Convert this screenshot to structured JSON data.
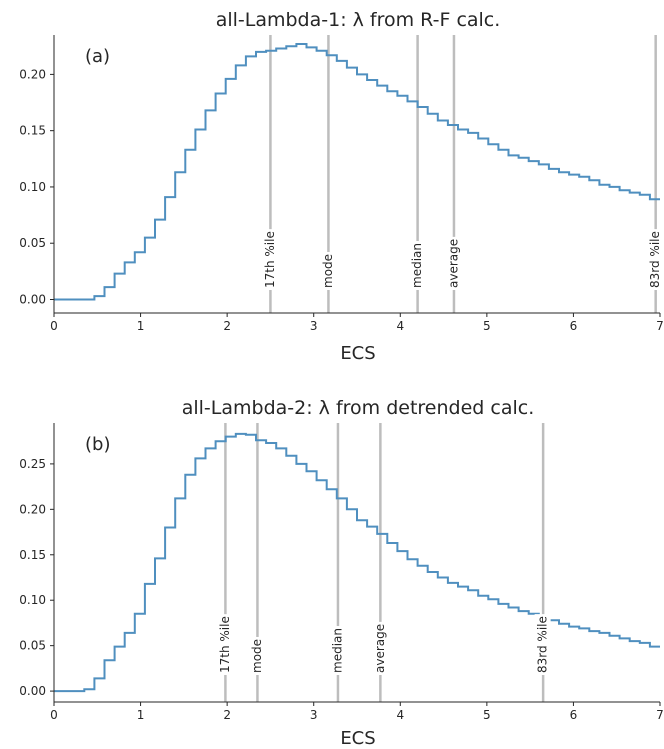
{
  "chart_data": [
    {
      "type": "line",
      "title": "all-Lambda-1: λ from R-F calc.",
      "panel_label": "(a)",
      "xlabel": "ECS",
      "ylabel": "",
      "xlim": [
        0,
        7
      ],
      "ylim": [
        -0.012,
        0.235
      ],
      "xticks": [
        0,
        1,
        2,
        3,
        4,
        5,
        6,
        7
      ],
      "yticks": [
        0.0,
        0.05,
        0.1,
        0.15,
        0.2
      ],
      "ytick_labels": [
        "0.00",
        "0.05",
        "0.10",
        "0.15",
        "0.20"
      ],
      "grid": false,
      "step_edges": [
        0,
        0.117,
        0.233,
        0.35,
        0.467,
        0.583,
        0.7,
        0.817,
        0.933,
        1.05,
        1.167,
        1.283,
        1.4,
        1.517,
        1.633,
        1.75,
        1.867,
        1.983,
        2.1,
        2.217,
        2.333,
        2.45,
        2.567,
        2.683,
        2.8,
        2.917,
        3.033,
        3.15,
        3.267,
        3.383,
        3.5,
        3.617,
        3.733,
        3.85,
        3.967,
        4.083,
        4.2,
        4.317,
        4.433,
        4.55,
        4.667,
        4.783,
        4.9,
        5.017,
        5.133,
        5.25,
        5.367,
        5.483,
        5.6,
        5.717,
        5.833,
        5.95,
        6.067,
        6.183,
        6.3,
        6.417,
        6.533,
        6.65,
        6.767,
        6.883,
        7.0
      ],
      "values": [
        0.0,
        0.0,
        0.0,
        0.0,
        0.003,
        0.011,
        0.023,
        0.033,
        0.042,
        0.055,
        0.071,
        0.091,
        0.113,
        0.133,
        0.151,
        0.168,
        0.183,
        0.196,
        0.208,
        0.216,
        0.22,
        0.221,
        0.223,
        0.225,
        0.227,
        0.224,
        0.221,
        0.217,
        0.212,
        0.206,
        0.2,
        0.195,
        0.19,
        0.185,
        0.181,
        0.176,
        0.171,
        0.165,
        0.159,
        0.155,
        0.151,
        0.148,
        0.143,
        0.138,
        0.133,
        0.128,
        0.126,
        0.123,
        0.12,
        0.116,
        0.113,
        0.111,
        0.109,
        0.106,
        0.102,
        0.1,
        0.097,
        0.095,
        0.093,
        0.089
      ],
      "markers": [
        {
          "label": "17th %ile",
          "x": 2.5
        },
        {
          "label": "mode",
          "x": 3.17
        },
        {
          "label": "median",
          "x": 4.2
        },
        {
          "label": "average",
          "x": 4.62
        },
        {
          "label": "83rd %ile",
          "x": 6.95
        }
      ]
    },
    {
      "type": "line",
      "title": "all-Lambda-2: λ from detrended calc.",
      "panel_label": "(b)",
      "xlabel": "ECS",
      "ylabel": "",
      "xlim": [
        0,
        7
      ],
      "ylim": [
        -0.012,
        0.295
      ],
      "xticks": [
        0,
        1,
        2,
        3,
        4,
        5,
        6,
        7
      ],
      "yticks": [
        0.0,
        0.05,
        0.1,
        0.15,
        0.2,
        0.25
      ],
      "ytick_labels": [
        "0.00",
        "0.05",
        "0.10",
        "0.15",
        "0.20",
        "0.25"
      ],
      "grid": false,
      "step_edges": [
        0,
        0.117,
        0.233,
        0.35,
        0.467,
        0.583,
        0.7,
        0.817,
        0.933,
        1.05,
        1.167,
        1.283,
        1.4,
        1.517,
        1.633,
        1.75,
        1.867,
        1.983,
        2.1,
        2.217,
        2.333,
        2.45,
        2.567,
        2.683,
        2.8,
        2.917,
        3.033,
        3.15,
        3.267,
        3.383,
        3.5,
        3.617,
        3.733,
        3.85,
        3.967,
        4.083,
        4.2,
        4.317,
        4.433,
        4.55,
        4.667,
        4.783,
        4.9,
        5.017,
        5.133,
        5.25,
        5.367,
        5.483,
        5.6,
        5.717,
        5.833,
        5.95,
        6.067,
        6.183,
        6.3,
        6.417,
        6.533,
        6.65,
        6.767,
        6.883,
        7.0
      ],
      "values": [
        0.0,
        0.0,
        0.0,
        0.002,
        0.014,
        0.034,
        0.049,
        0.064,
        0.085,
        0.118,
        0.146,
        0.18,
        0.212,
        0.238,
        0.256,
        0.267,
        0.275,
        0.28,
        0.283,
        0.282,
        0.276,
        0.273,
        0.267,
        0.259,
        0.25,
        0.242,
        0.232,
        0.222,
        0.212,
        0.2,
        0.188,
        0.181,
        0.173,
        0.163,
        0.154,
        0.145,
        0.138,
        0.131,
        0.125,
        0.119,
        0.115,
        0.111,
        0.105,
        0.101,
        0.096,
        0.092,
        0.088,
        0.085,
        0.081,
        0.078,
        0.074,
        0.071,
        0.069,
        0.066,
        0.064,
        0.061,
        0.058,
        0.055,
        0.053,
        0.049
      ],
      "markers": [
        {
          "label": "17th %ile",
          "x": 1.98
        },
        {
          "label": "mode",
          "x": 2.35
        },
        {
          "label": "median",
          "x": 3.28
        },
        {
          "label": "average",
          "x": 3.77
        },
        {
          "label": "83rd %ile",
          "x": 5.65
        }
      ]
    }
  ]
}
